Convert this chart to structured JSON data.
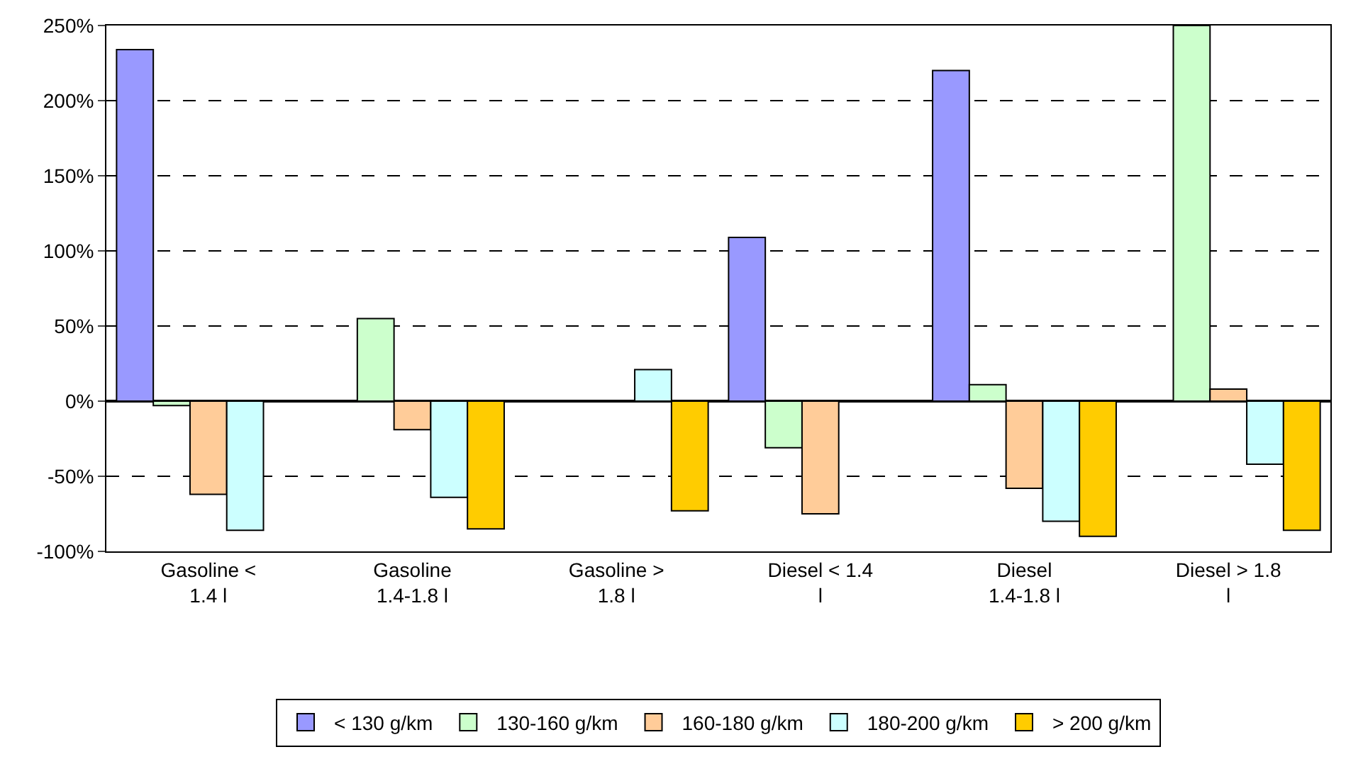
{
  "chart_data": {
    "type": "bar",
    "categories": [
      "Gasoline < 1.4 l",
      "Gasoline 1.4-1.8 l",
      "Gasoline > 1.8 l",
      "Diesel < 1.4 l",
      "Diesel 1.4-1.8 l",
      "Diesel > 1.8 l"
    ],
    "series": [
      {
        "name": "< 130 g/km",
        "color": "#9999ff",
        "values": [
          234,
          null,
          null,
          109,
          220,
          null
        ]
      },
      {
        "name": "130-160 g/km",
        "color": "#ccffcc",
        "values": [
          -3,
          55,
          null,
          -31,
          11,
          250
        ]
      },
      {
        "name": "160-180 g/km",
        "color": "#ffcc99",
        "values": [
          -62,
          -19,
          null,
          -75,
          -58,
          8
        ]
      },
      {
        "name": "180-200 g/km",
        "color": "#ccffff",
        "values": [
          -86,
          -64,
          21,
          null,
          -80,
          -42
        ]
      },
      {
        "name": "> 200 g/km",
        "color": "#ffcc00",
        "values": [
          null,
          -85,
          -73,
          null,
          -90,
          -86
        ]
      }
    ],
    "ylim": [
      -100,
      250
    ],
    "yticks": [
      {
        "value": -100,
        "label": "-100%"
      },
      {
        "value": -50,
        "label": "-50%"
      },
      {
        "value": 0,
        "label": "0%"
      },
      {
        "value": 50,
        "label": "50%"
      },
      {
        "value": 100,
        "label": "100%"
      },
      {
        "value": 150,
        "label": "150%"
      },
      {
        "value": 200,
        "label": "200%"
      },
      {
        "value": 250,
        "label": "250%"
      }
    ],
    "grid": "y",
    "line_style": "dashed",
    "legend": "bottom"
  }
}
